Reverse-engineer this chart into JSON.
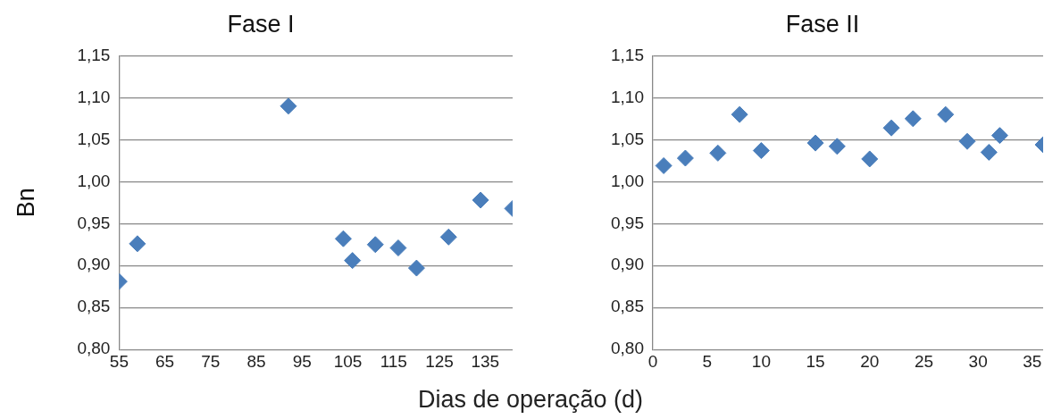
{
  "chart_data": [
    {
      "type": "scatter",
      "title": "Fase I",
      "ylabel": "Bn",
      "xlabel": "Dias de operação (d)",
      "x": [
        55,
        59,
        92,
        104,
        106,
        111,
        116,
        120,
        127,
        134,
        141
      ],
      "series": [
        {
          "color": "#4a7ebb",
          "values": [
            0.881,
            0.926,
            1.09,
            0.932,
            0.906,
            0.925,
            0.921,
            0.897,
            0.934,
            0.978,
            0.968
          ]
        }
      ],
      "xlim": [
        55,
        141
      ],
      "xticks": [
        55,
        65,
        75,
        85,
        95,
        105,
        115,
        125,
        135
      ],
      "ylim": [
        0.8,
        1.15
      ],
      "yticks": [
        {
          "value": 0.8,
          "label": "0,80"
        },
        {
          "value": 0.85,
          "label": "0,85"
        },
        {
          "value": 0.9,
          "label": "0,90"
        },
        {
          "value": 0.95,
          "label": "0,95"
        },
        {
          "value": 1.0,
          "label": "1,00"
        },
        {
          "value": 1.05,
          "label": "1,05"
        },
        {
          "value": 1.1,
          "label": "1,10"
        },
        {
          "value": 1.15,
          "label": "1,15"
        }
      ],
      "grid": "y",
      "marker": "diamond"
    },
    {
      "type": "scatter",
      "title": "Fase II",
      "x": [
        1,
        3,
        6,
        8,
        10,
        15,
        17,
        20,
        22,
        24,
        27,
        29,
        31,
        32,
        36
      ],
      "series": [
        {
          "color": "#4a7ebb",
          "values": [
            1.019,
            1.028,
            1.034,
            1.08,
            1.037,
            1.046,
            1.042,
            1.027,
            1.064,
            1.075,
            1.08,
            1.048,
            1.035,
            1.055,
            1.044
          ]
        }
      ],
      "xlim": [
        0,
        36
      ],
      "xticks": [
        0,
        5,
        10,
        15,
        20,
        25,
        30,
        35
      ],
      "ylim": [
        0.8,
        1.15
      ],
      "yticks": [
        {
          "value": 0.8,
          "label": "0,80"
        },
        {
          "value": 0.85,
          "label": "0,85"
        },
        {
          "value": 0.9,
          "label": "0,90"
        },
        {
          "value": 0.95,
          "label": "0,95"
        },
        {
          "value": 1.0,
          "label": "1,00"
        },
        {
          "value": 1.05,
          "label": "1,05"
        },
        {
          "value": 1.1,
          "label": "1,10"
        },
        {
          "value": 1.15,
          "label": "1,15"
        }
      ],
      "grid": "y",
      "marker": "diamond"
    }
  ]
}
